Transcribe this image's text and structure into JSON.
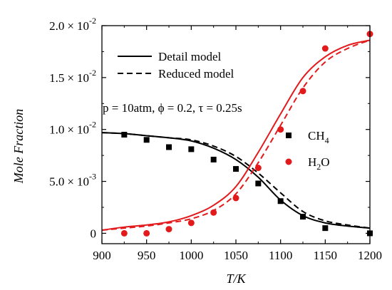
{
  "chart_data": {
    "type": "line",
    "title": "",
    "xlabel": "T/K",
    "ylabel": "Mole Fraction",
    "xlim": [
      900,
      1200
    ],
    "ylim": [
      -0.001,
      0.02
    ],
    "x_ticks": [
      900,
      950,
      1000,
      1050,
      1100,
      1150,
      1200
    ],
    "y_tick_labels": [
      {
        "value": 0.0,
        "label": "0"
      },
      {
        "value": 0.005,
        "mantissa": "5.0",
        "times": "×",
        "base": "10",
        "exp": "-3"
      },
      {
        "value": 0.01,
        "mantissa": "1.0",
        "times": "×",
        "base": "10",
        "exp": "-2"
      },
      {
        "value": 0.015,
        "mantissa": "1.5",
        "times": "×",
        "base": "10",
        "exp": "-2"
      },
      {
        "value": 0.02,
        "mantissa": "2.0",
        "times": "×",
        "base": "10",
        "exp": "-2"
      }
    ],
    "legend_lines": [
      {
        "label": "Detail model",
        "style": "solid"
      },
      {
        "label": "Reduced model",
        "style": "dashed"
      }
    ],
    "legend_markers": [
      {
        "name": "CH",
        "subscript": "4",
        "marker": "square",
        "color": "#000000"
      },
      {
        "name": "H",
        "subscript": "2",
        "suffix": "O",
        "marker": "circle",
        "color": "#e31a1c"
      }
    ],
    "annotation": "p = 10atm, ϕ = 0.2, τ = 0.25s",
    "series": [
      {
        "species": "CH4",
        "kind": "experiment",
        "marker": "square",
        "color": "#000000",
        "x": [
          925,
          950,
          975,
          1000,
          1025,
          1050,
          1075,
          1100,
          1125,
          1150,
          1200
        ],
        "y": [
          0.0095,
          0.009,
          0.0083,
          0.0081,
          0.0071,
          0.0062,
          0.0048,
          0.0031,
          0.0016,
          0.0005,
          0.0
        ]
      },
      {
        "species": "H2O",
        "kind": "experiment",
        "marker": "circle",
        "color": "#e31a1c",
        "x": [
          925,
          950,
          975,
          1000,
          1025,
          1050,
          1075,
          1100,
          1125,
          1150,
          1200
        ],
        "y": [
          0.0,
          0.0,
          0.0004,
          0.001,
          0.002,
          0.0034,
          0.0063,
          0.01,
          0.0137,
          0.0178,
          0.0192
        ]
      },
      {
        "species": "CH4",
        "kind": "detail",
        "style": "solid",
        "color": "#000000",
        "x": [
          900,
          925,
          950,
          975,
          1000,
          1025,
          1050,
          1075,
          1100,
          1125,
          1150,
          1175,
          1200
        ],
        "y": [
          0.0097,
          0.0096,
          0.0094,
          0.0092,
          0.0089,
          0.0082,
          0.0071,
          0.0054,
          0.0032,
          0.0017,
          0.001,
          0.0007,
          0.0005
        ]
      },
      {
        "species": "CH4",
        "kind": "reduced",
        "style": "dashed",
        "color": "#000000",
        "x": [
          900,
          925,
          950,
          975,
          1000,
          1025,
          1050,
          1075,
          1100,
          1125,
          1150,
          1175,
          1200
        ],
        "y": [
          0.0097,
          0.0096,
          0.0094,
          0.0092,
          0.009,
          0.0084,
          0.0074,
          0.0058,
          0.0039,
          0.0021,
          0.0012,
          0.0008,
          0.0005
        ]
      },
      {
        "species": "H2O",
        "kind": "detail",
        "style": "solid",
        "color": "#e31a1c",
        "x": [
          900,
          925,
          950,
          975,
          1000,
          1025,
          1050,
          1075,
          1100,
          1125,
          1150,
          1175,
          1200
        ],
        "y": [
          0.0003,
          0.0006,
          0.0008,
          0.0011,
          0.0017,
          0.0027,
          0.0045,
          0.0078,
          0.0115,
          0.015,
          0.017,
          0.0181,
          0.0186
        ]
      },
      {
        "species": "H2O",
        "kind": "reduced",
        "style": "dashed",
        "color": "#e31a1c",
        "x": [
          900,
          925,
          950,
          975,
          1000,
          1025,
          1050,
          1075,
          1100,
          1125,
          1150,
          1175,
          1200
        ],
        "y": [
          0.0003,
          0.0005,
          0.0007,
          0.001,
          0.0014,
          0.0022,
          0.0038,
          0.0068,
          0.0104,
          0.014,
          0.0165,
          0.0178,
          0.0186
        ]
      }
    ]
  }
}
